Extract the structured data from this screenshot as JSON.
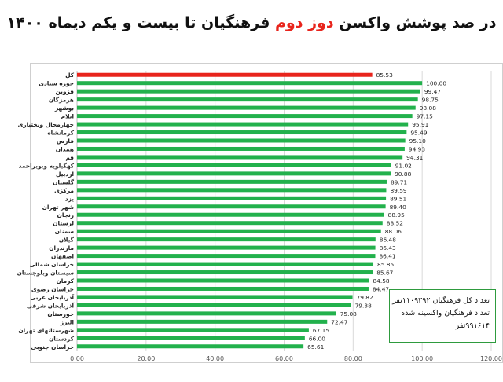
{
  "title": {
    "part1": "در صد پوشش واکسن ",
    "highlight": "دوز دوم",
    "part2": " فرهنگیان تا بیست و یکم دیماه ۱۴۰۰"
  },
  "colors": {
    "bar": "#22b14c",
    "highlight_bar": "#e8241c",
    "title_highlight": "#e8241c",
    "note_border": "#2e9b3e"
  },
  "note": {
    "line1": "تعداد کل فرهنگیان ۱۱۰۹۳۹۲نفر",
    "line2": "تعداد فرهنگیان واکسینه شده",
    "line3": "۹۹۱۶۱۴نفر"
  },
  "chart_data": {
    "type": "bar",
    "orientation": "horizontal",
    "categories": [
      "کل",
      "حوزه ستادی",
      "قزوین",
      "هرمزگان",
      "بوشهر",
      "ایلام",
      "چهارمحال وبختیاری",
      "کرمانشاه",
      "فارس",
      "همدان",
      "قم",
      "کهگیلویه وبویراحمد",
      "اردبیل",
      "گلستان",
      "مرکزی",
      "یزد",
      "شهر تهران",
      "زنجان",
      "لرستان",
      "سمنان",
      "گیلان",
      "مازندران",
      "اصفهان",
      "خراسان شمالی",
      "سیستان وبلوچستان",
      "کرمان",
      "خراسان رضوی",
      "آذربایجان غربی",
      "آذربایجان شرقی",
      "خوزستان",
      "البرز",
      "شهرستانهای تهران",
      "کردستان",
      "خراسان جنوبی"
    ],
    "values": [
      85.53,
      100.0,
      99.47,
      98.75,
      98.08,
      97.15,
      95.91,
      95.49,
      95.1,
      94.93,
      94.31,
      91.02,
      90.88,
      89.71,
      89.59,
      89.51,
      89.4,
      88.95,
      88.52,
      88.06,
      86.48,
      86.43,
      86.41,
      85.85,
      85.67,
      84.58,
      84.47,
      79.82,
      79.38,
      75.08,
      72.47,
      67.15,
      66.0,
      65.61
    ],
    "value_labels": [
      "85.53",
      "100.00",
      "99.47",
      "98.75",
      "98.08",
      "97.15",
      "95.91",
      "95.49",
      "95.10",
      "94.93",
      "94.31",
      "91.02",
      "90.88",
      "89.71",
      "89.59",
      "89.51",
      "89.40",
      "88.95",
      "88.52",
      "88.06",
      "86.48",
      "86.43",
      "86.41",
      "85.85",
      "85.67",
      "84.58",
      "84.47",
      "79.82",
      "79.38",
      "75.08",
      "72.47",
      "67.15",
      "66.00",
      "65.61"
    ],
    "highlight_index": 0,
    "xlim": [
      0,
      120
    ],
    "xticks": [
      "0.00",
      "20.00",
      "40.00",
      "60.00",
      "80.00",
      "100.00",
      "120.00"
    ],
    "grid": "vertical"
  }
}
